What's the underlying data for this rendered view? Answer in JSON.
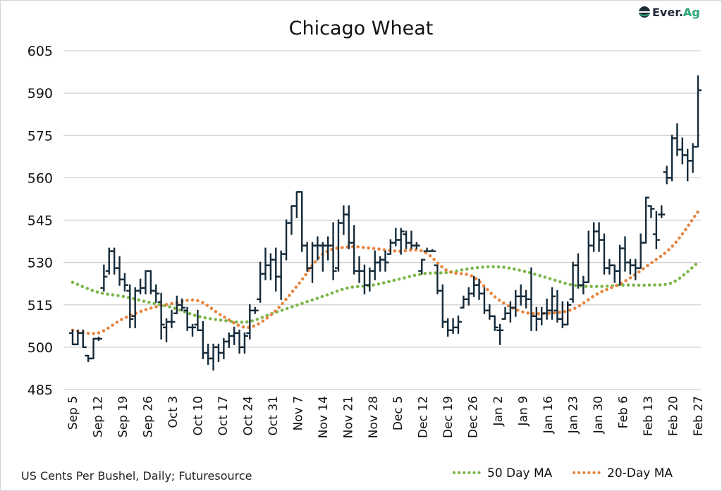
{
  "chart_data": {
    "type": "ohlc",
    "title": "Chicago Wheat",
    "source_note": "US Cents Per Bushel, Daily; Futuresource",
    "ylim": [
      485,
      605
    ],
    "yticks": [
      485,
      500,
      515,
      530,
      545,
      560,
      575,
      590,
      605
    ],
    "grid": "horizontal",
    "legend_position": "bottom-right",
    "x_tick_labels": [
      "Sep 5",
      "Sep 12",
      "Sep 19",
      "Sep 26",
      "Oct 3",
      "Oct 10",
      "Oct 17",
      "Oct 24",
      "Oct 31",
      "Nov 7",
      "Nov 14",
      "Nov 21",
      "Nov 28",
      "Dec 5",
      "Dec 12",
      "Dec 19",
      "Dec 26",
      "Jan 2",
      "Jan 9",
      "Jan 16",
      "Jan 23",
      "Jan 30",
      "Feb 6",
      "Feb 13",
      "Feb 20",
      "Feb 27"
    ],
    "bar_fields": [
      "open",
      "high",
      "low",
      "close"
    ],
    "bars": [
      [
        505,
        506,
        501,
        501
      ],
      [
        501,
        506,
        501,
        505
      ],
      [
        505,
        506,
        500,
        500
      ],
      [
        497,
        497,
        495,
        496
      ],
      [
        496,
        503,
        496,
        503
      ],
      [
        503,
        503.5,
        502.5,
        503
      ],
      [
        521,
        529,
        520,
        525
      ],
      [
        527,
        535,
        526,
        534
      ],
      [
        534,
        535,
        526,
        528
      ],
      [
        528,
        532,
        522,
        524
      ],
      [
        524,
        526,
        520,
        522
      ],
      [
        520,
        522,
        507,
        510
      ],
      [
        511,
        521,
        507,
        520
      ],
      [
        520,
        524,
        519,
        521
      ],
      [
        521,
        527,
        519,
        527
      ],
      [
        527,
        527,
        519,
        520
      ],
      [
        520,
        522,
        516,
        519
      ],
      [
        516,
        519,
        503,
        508
      ],
      [
        507,
        510,
        502,
        509
      ],
      [
        509,
        513,
        507,
        509
      ],
      [
        512,
        518,
        512,
        515
      ],
      [
        515,
        517,
        513,
        514
      ],
      [
        513,
        514,
        506,
        507
      ],
      [
        507,
        508,
        504,
        507
      ],
      [
        508,
        513,
        506,
        506
      ],
      [
        506,
        509,
        496,
        498
      ],
      [
        498,
        501,
        494,
        496
      ],
      [
        496,
        501,
        492,
        500
      ],
      [
        500,
        501,
        495,
        498
      ],
      [
        498,
        503,
        496,
        502
      ],
      [
        502,
        505,
        500,
        504
      ],
      [
        504,
        507,
        501,
        505
      ],
      [
        505,
        506,
        498,
        500
      ],
      [
        500,
        505,
        498,
        504
      ],
      [
        505,
        515,
        503,
        513
      ],
      [
        513,
        514,
        512,
        513
      ],
      [
        517,
        530,
        516,
        526
      ],
      [
        526,
        535,
        524,
        529
      ],
      [
        529,
        533,
        524,
        531
      ],
      [
        531,
        535,
        520,
        525
      ],
      [
        525,
        534,
        517,
        533
      ],
      [
        533,
        545,
        531,
        544
      ],
      [
        544,
        550,
        540,
        550
      ],
      [
        550,
        555,
        546,
        555
      ],
      [
        555,
        555,
        534,
        536
      ],
      [
        536,
        537,
        527,
        528
      ],
      [
        528,
        537,
        523,
        536
      ],
      [
        536,
        539,
        531,
        536
      ],
      [
        536,
        537,
        527,
        536
      ],
      [
        536,
        539,
        531,
        536
      ],
      [
        536,
        544,
        524,
        527
      ],
      [
        528,
        545,
        527,
        544
      ],
      [
        544,
        550,
        540,
        547
      ],
      [
        547,
        550,
        535,
        537
      ],
      [
        537,
        543,
        526,
        527
      ],
      [
        527,
        532,
        523,
        527
      ],
      [
        527,
        529,
        519,
        522
      ],
      [
        522,
        528,
        520,
        527
      ],
      [
        527,
        534,
        524,
        530
      ],
      [
        530,
        532,
        527,
        531
      ],
      [
        531,
        534,
        527,
        530
      ],
      [
        533,
        538,
        533,
        537
      ],
      [
        537,
        542,
        536,
        538
      ],
      [
        538,
        542,
        533,
        541
      ],
      [
        540,
        541,
        535,
        537
      ],
      [
        537,
        541,
        535,
        536
      ],
      [
        536,
        537,
        535,
        536
      ],
      [
        527,
        531,
        526,
        531
      ],
      [
        534,
        535,
        534,
        534
      ],
      [
        534,
        534.5,
        534,
        534
      ],
      [
        529,
        529,
        519,
        520
      ],
      [
        520,
        522,
        507,
        509
      ],
      [
        509,
        510,
        504,
        506
      ],
      [
        506,
        510,
        505,
        507
      ],
      [
        507,
        511,
        505,
        509
      ],
      [
        514,
        518,
        514,
        517
      ],
      [
        517,
        521,
        515,
        519
      ],
      [
        519,
        525,
        518,
        522
      ],
      [
        522,
        524,
        517,
        519
      ],
      [
        519,
        521,
        512,
        513
      ],
      [
        513,
        515,
        510,
        511
      ],
      [
        511,
        511,
        506,
        507
      ],
      [
        506,
        508,
        501,
        506
      ],
      [
        510,
        514,
        510,
        512
      ],
      [
        512,
        516,
        509,
        514
      ],
      [
        514,
        520,
        511,
        518
      ],
      [
        518,
        522,
        515,
        518
      ],
      [
        518,
        520,
        514,
        517
      ],
      [
        517,
        528,
        506,
        511
      ],
      [
        511,
        514,
        506,
        510
      ],
      [
        510,
        514,
        508,
        512
      ],
      [
        512,
        517,
        510,
        513
      ],
      [
        513,
        521,
        510,
        518
      ],
      [
        513,
        520,
        509,
        510
      ],
      [
        510,
        516,
        507,
        508
      ],
      [
        508,
        516,
        508,
        515
      ],
      [
        517,
        530,
        516,
        529
      ],
      [
        529,
        533,
        521,
        522
      ],
      [
        522,
        525,
        519,
        523
      ],
      [
        523,
        541,
        523,
        536
      ],
      [
        536,
        544,
        534,
        541
      ],
      [
        541,
        544,
        534,
        538
      ],
      [
        538,
        540,
        526,
        528
      ],
      [
        528,
        531,
        526,
        529
      ],
      [
        529,
        529,
        523,
        527
      ],
      [
        527,
        536,
        522,
        535
      ],
      [
        535,
        539,
        527,
        530
      ],
      [
        530,
        531,
        526,
        529
      ],
      [
        529,
        531,
        524,
        528
      ],
      [
        528,
        540,
        528,
        537
      ],
      [
        537,
        553,
        537,
        553
      ],
      [
        550,
        550,
        546,
        549
      ],
      [
        540,
        548,
        535,
        538
      ],
      [
        547,
        550,
        546,
        547
      ],
      [
        562,
        564,
        558,
        560
      ],
      [
        560,
        575,
        559,
        574
      ],
      [
        574,
        579,
        568,
        570
      ],
      [
        570,
        574,
        565,
        568
      ],
      [
        568,
        570,
        559,
        566
      ],
      [
        566,
        572,
        562,
        571
      ],
      [
        571,
        596,
        571,
        591
      ]
    ],
    "series": [
      {
        "name": "50 Day MA",
        "color": "#7ab648",
        "style": "dotted",
        "values_at_x_ticks": [
          523,
          519.5,
          518,
          516,
          514,
          511,
          509.5,
          509,
          512,
          515,
          518,
          521,
          522,
          524,
          526,
          526.5,
          528,
          528.5,
          527,
          524.5,
          522,
          521.5,
          522,
          522,
          523,
          530
        ]
      },
      {
        "name": "20-Day MA",
        "color": "#e6843e",
        "style": "dotted",
        "values_at_x_ticks": [
          506,
          505,
          510,
          513.5,
          515.5,
          516.5,
          511,
          507,
          512,
          522,
          533,
          535.5,
          535,
          534,
          534,
          527,
          525,
          517,
          512.5,
          512,
          513.5,
          519,
          523,
          529,
          536,
          548
        ]
      }
    ],
    "bar_color": "#142a3a"
  },
  "logo": {
    "text_dark": "Ever.",
    "text_green": "Ag",
    "color_dark": "#1f2b38",
    "color_green": "#2aa676"
  }
}
